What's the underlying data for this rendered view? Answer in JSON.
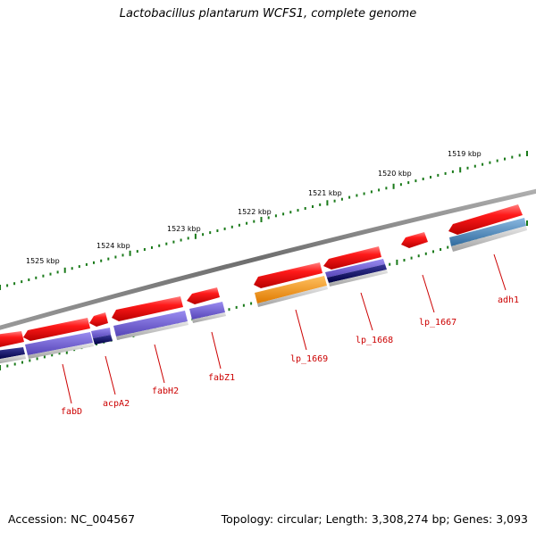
{
  "title": "Lactobacillus plantarum WCFS1, complete genome",
  "footer": {
    "accession": "Accession: NC_004567",
    "summary": "Topology: circular; Length: 3,308,274 bp; Genes: 3,093"
  },
  "scale_labels": [
    "1519 kbp",
    "1520 kbp",
    "1521 kbp",
    "1522 kbp",
    "1523 kbp",
    "1524 kbp",
    "1525 kbp"
  ],
  "gene_labels": [
    "adh1",
    "lp_1667",
    "lp_1668",
    "lp_1669",
    "fabZ1",
    "fabH2",
    "acpA2",
    "fabD"
  ],
  "colors": {
    "gene": "#ee0000",
    "backbone": "#7a7a7a",
    "tick": "#1a7a1a",
    "label": "#cc0000",
    "cog_purple": "#6a5acd",
    "cog_navy": "#0a0a66",
    "cog_orange": "#ff9900",
    "cog_steel": "#4682b4"
  }
}
